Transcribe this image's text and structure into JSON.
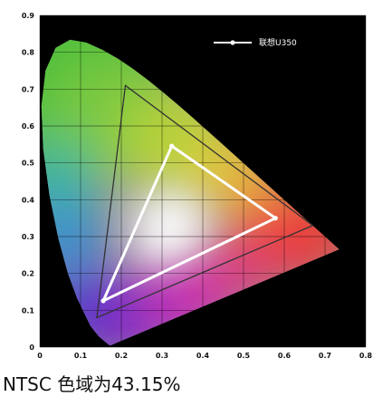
{
  "chart_data": {
    "type": "scatter",
    "title": "",
    "xlabel": "",
    "ylabel": "",
    "xlim": [
      0,
      0.8
    ],
    "ylim": [
      0,
      0.9
    ],
    "x_ticks": [
      "0",
      "0.1",
      "0.2",
      "0.3",
      "0.4",
      "0.5",
      "0.6",
      "0.7",
      "0.8"
    ],
    "y_ticks": [
      "0",
      "0.1",
      "0.2",
      "0.3",
      "0.4",
      "0.5",
      "0.6",
      "0.7",
      "0.8",
      "0.9"
    ],
    "grid": true,
    "background_color": "#000000",
    "legend_placement": "top-right",
    "spectral_locus": [
      [
        0.1741,
        0.005
      ],
      [
        0.1738,
        0.0049
      ],
      [
        0.1733,
        0.0048
      ],
      [
        0.1726,
        0.0048
      ],
      [
        0.1714,
        0.0051
      ],
      [
        0.1689,
        0.0069
      ],
      [
        0.1644,
        0.0109
      ],
      [
        0.1566,
        0.0177
      ],
      [
        0.144,
        0.0297
      ],
      [
        0.1241,
        0.0578
      ],
      [
        0.0913,
        0.1327
      ],
      [
        0.0687,
        0.2007
      ],
      [
        0.0454,
        0.295
      ],
      [
        0.0235,
        0.4127
      ],
      [
        0.0082,
        0.5384
      ],
      [
        0.0039,
        0.6548
      ],
      [
        0.0139,
        0.7502
      ],
      [
        0.0389,
        0.812
      ],
      [
        0.0743,
        0.8338
      ],
      [
        0.1142,
        0.8262
      ],
      [
        0.1547,
        0.8059
      ],
      [
        0.1929,
        0.7816
      ],
      [
        0.2296,
        0.7543
      ],
      [
        0.2658,
        0.7243
      ],
      [
        0.3016,
        0.6923
      ],
      [
        0.3373,
        0.6589
      ],
      [
        0.3731,
        0.6245
      ],
      [
        0.4087,
        0.5896
      ],
      [
        0.4441,
        0.5547
      ],
      [
        0.4788,
        0.5202
      ],
      [
        0.5125,
        0.4866
      ],
      [
        0.5448,
        0.4544
      ],
      [
        0.5752,
        0.4242
      ],
      [
        0.6029,
        0.3965
      ],
      [
        0.627,
        0.3725
      ],
      [
        0.6482,
        0.3514
      ],
      [
        0.6658,
        0.334
      ],
      [
        0.6801,
        0.3197
      ],
      [
        0.6915,
        0.3083
      ],
      [
        0.7006,
        0.2993
      ],
      [
        0.7079,
        0.292
      ],
      [
        0.714,
        0.2859
      ],
      [
        0.719,
        0.2809
      ],
      [
        0.723,
        0.277
      ],
      [
        0.726,
        0.274
      ],
      [
        0.7283,
        0.2717
      ],
      [
        0.73,
        0.27
      ],
      [
        0.7311,
        0.2689
      ],
      [
        0.732,
        0.268
      ],
      [
        0.7327,
        0.2673
      ],
      [
        0.7334,
        0.2666
      ],
      [
        0.734,
        0.266
      ],
      [
        0.7344,
        0.2656
      ],
      [
        0.7346,
        0.2654
      ],
      [
        0.7347,
        0.2653
      ]
    ],
    "reference_gamut": {
      "points": [
        [
          0.21,
          0.71
        ],
        [
          0.67,
          0.33
        ],
        [
          0.14,
          0.08
        ]
      ],
      "color": "#333333"
    },
    "series": [
      {
        "name": "联想U350",
        "color": "#ffffff",
        "points": [
          [
            0.3237,
            0.5456
          ],
          [
            0.5784,
            0.3499
          ],
          [
            0.1558,
            0.1257
          ]
        ]
      }
    ]
  },
  "caption": "NTSC 色域为43.15%"
}
